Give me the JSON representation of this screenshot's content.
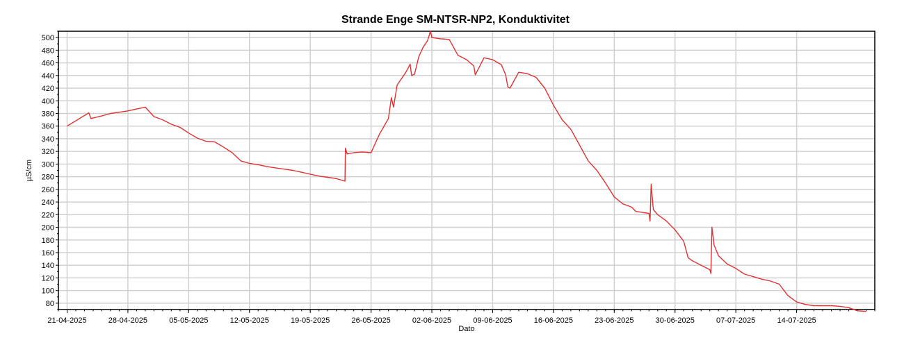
{
  "chart_data": {
    "type": "line",
    "title": "Strande Enge SM-NTSR-NP2, Konduktivitet",
    "xlabel": "Dato",
    "ylabel": "µS/cm",
    "xlim": [
      "2025-04-20",
      "2025-07-23"
    ],
    "ylim": [
      70,
      510
    ],
    "grid": true,
    "x_ticks": [
      "21-04-2025",
      "28-04-2025",
      "05-05-2025",
      "12-05-2025",
      "19-05-2025",
      "26-05-2025",
      "02-06-2025",
      "09-06-2025",
      "16-06-2025",
      "23-06-2025",
      "30-06-2025",
      "07-07-2025",
      "14-07-2025"
    ],
    "y_ticks": [
      80,
      100,
      120,
      140,
      160,
      180,
      200,
      220,
      240,
      260,
      280,
      300,
      320,
      340,
      360,
      380,
      400,
      420,
      440,
      460,
      480,
      500
    ],
    "line_color": "#e03030",
    "series": [
      {
        "x": [
          "2025-04-21",
          "2025-04-23 12:00",
          "2025-04-23 18:00",
          "2025-04-24",
          "2025-04-25",
          "2025-04-26",
          "2025-04-27",
          "2025-04-28",
          "2025-04-29",
          "2025-04-30",
          "2025-05-01",
          "2025-05-02",
          "2025-05-03",
          "2025-05-04",
          "2025-05-05",
          "2025-05-06",
          "2025-05-07",
          "2025-05-08",
          "2025-05-09",
          "2025-05-10",
          "2025-05-11",
          "2025-05-12",
          "2025-05-13",
          "2025-05-14",
          "2025-05-15",
          "2025-05-16",
          "2025-05-17",
          "2025-05-18",
          "2025-05-19",
          "2025-05-20",
          "2025-05-21",
          "2025-05-22",
          "2025-05-23",
          "2025-05-23 01:00",
          "2025-05-23 06:00",
          "2025-05-24",
          "2025-05-25",
          "2025-05-26",
          "2025-05-27",
          "2025-05-28",
          "2025-05-28 08:00",
          "2025-05-28 14:00",
          "2025-05-29",
          "2025-05-30",
          "2025-05-30 12:00",
          "2025-05-30 16:00",
          "2025-05-31",
          "2025-05-31 12:00",
          "2025-06-01",
          "2025-06-01 12:00",
          "2025-06-01 20:00",
          "2025-06-02",
          "2025-06-03",
          "2025-06-04",
          "2025-06-05",
          "2025-06-06",
          "2025-06-06 20:00",
          "2025-06-07",
          "2025-06-08",
          "2025-06-09",
          "2025-06-10",
          "2025-06-10 12:00",
          "2025-06-10 18:00",
          "2025-06-11",
          "2025-06-12",
          "2025-06-13",
          "2025-06-14",
          "2025-06-15",
          "2025-06-16",
          "2025-06-17",
          "2025-06-18",
          "2025-06-19",
          "2025-06-20",
          "2025-06-21",
          "2025-06-22",
          "2025-06-23",
          "2025-06-24",
          "2025-06-25",
          "2025-06-25 12:00",
          "2025-06-26",
          "2025-06-27",
          "2025-06-27 03:00",
          "2025-06-27 06:00",
          "2025-06-27 12:00",
          "2025-06-28",
          "2025-06-29",
          "2025-06-30",
          "2025-07-01",
          "2025-07-01 12:00",
          "2025-07-02",
          "2025-07-03",
          "2025-07-04",
          "2025-07-04 03:00",
          "2025-07-04 06:00",
          "2025-07-04 12:00",
          "2025-07-05",
          "2025-07-06",
          "2025-07-07",
          "2025-07-08",
          "2025-07-09",
          "2025-07-10",
          "2025-07-11",
          "2025-07-12",
          "2025-07-13",
          "2025-07-14",
          "2025-07-15",
          "2025-07-16",
          "2025-07-17",
          "2025-07-18",
          "2025-07-19",
          "2025-07-20",
          "2025-07-21",
          "2025-07-22"
        ],
        "y": [
          360,
          381,
          372,
          373,
          376,
          380,
          382,
          384,
          387,
          390,
          375,
          370,
          363,
          358,
          349,
          341,
          336,
          335,
          327,
          318,
          305,
          301,
          299,
          296,
          294,
          292,
          290,
          287,
          284,
          281,
          279,
          277,
          273,
          325,
          316,
          318,
          319,
          318,
          348,
          372,
          405,
          390,
          425,
          445,
          458,
          440,
          442,
          470,
          485,
          495,
          510,
          500,
          498,
          497,
          472,
          465,
          455,
          441,
          468,
          465,
          457,
          441,
          422,
          420,
          445,
          443,
          437,
          420,
          393,
          370,
          355,
          330,
          305,
          290,
          270,
          248,
          237,
          232,
          225,
          224,
          222,
          210,
          268,
          228,
          220,
          210,
          196,
          178,
          152,
          147,
          140,
          133,
          127,
          200,
          172,
          155,
          142,
          135,
          126,
          122,
          118,
          115,
          110,
          92,
          82,
          78,
          76,
          76,
          76,
          75,
          73,
          68,
          67
        ]
      }
    ]
  }
}
